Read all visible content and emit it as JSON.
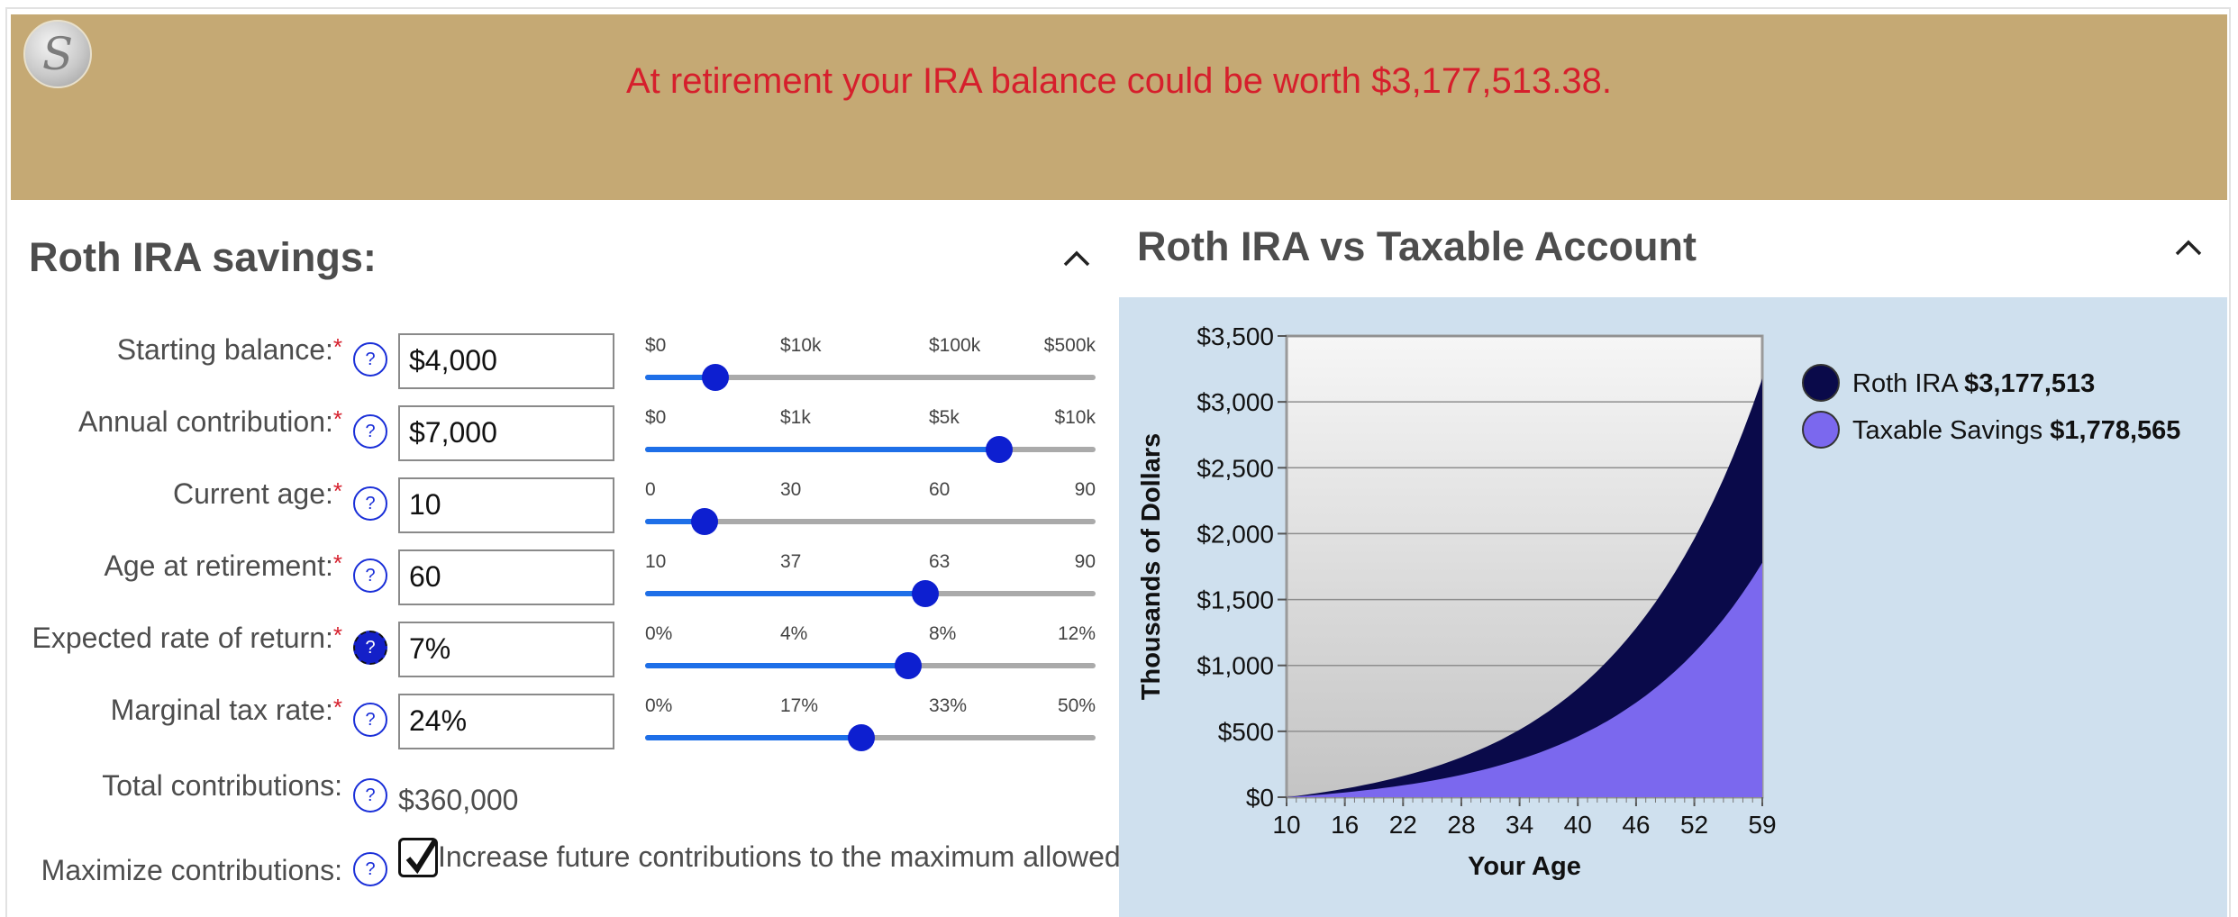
{
  "banner": {
    "message": "At retirement your IRA balance could be worth $3,177,513.38.",
    "logo_icon": "globe-logo-icon",
    "color_bg": "#c5a974",
    "color_text": "#d61f2c"
  },
  "left": {
    "title": "Roth IRA savings:",
    "rows": [
      {
        "label": "Starting balance:",
        "value": "$4,000",
        "ticks": [
          "$0",
          "$10k",
          "$100k",
          "$500k"
        ],
        "position": 0.155
      },
      {
        "label": "Annual contribution:",
        "value": "$7,000",
        "ticks": [
          "$0",
          "$1k",
          "$5k",
          "$10k"
        ],
        "position": 0.785
      },
      {
        "label": "Current age:",
        "value": "10",
        "ticks": [
          "0",
          "30",
          "60",
          "90"
        ],
        "position": 0.132
      },
      {
        "label": "Age at retirement:",
        "value": "60",
        "ticks": [
          "10",
          "37",
          "63",
          "90"
        ],
        "position": 0.622
      },
      {
        "label": "Expected rate of return:",
        "value": "7%",
        "ticks": [
          "0%",
          "4%",
          "8%",
          "12%"
        ],
        "position": 0.583
      },
      {
        "label": "Marginal tax rate:",
        "value": "24%",
        "ticks": [
          "0%",
          "17%",
          "33%",
          "50%"
        ],
        "position": 0.48
      }
    ],
    "total": {
      "label": "Total contributions:",
      "value": "$360,000"
    },
    "maximize": {
      "label": "Maximize contributions:",
      "text": "Increase future contributions to the maximum allowed",
      "checked": true
    },
    "required_mark": "*",
    "help_mark": "?"
  },
  "right": {
    "title": "Roth IRA vs Taxable Account"
  },
  "chart_data": {
    "type": "area",
    "title": "",
    "xlabel": "Your Age",
    "ylabel": "Thousands of Dollars",
    "x_ticks": [
      "10",
      "16",
      "22",
      "28",
      "34",
      "40",
      "46",
      "52",
      "59"
    ],
    "y_ticks": [
      "$0",
      "$500",
      "$1,000",
      "$1,500",
      "$2,000",
      "$2,500",
      "$3,000",
      "$3,500"
    ],
    "xlim": [
      10,
      59
    ],
    "ylim": [
      0,
      3500
    ],
    "grid": true,
    "legend_position": "right",
    "series": [
      {
        "name": "Roth IRA",
        "legend_value": "$3,177,513",
        "color": "#0a0a4a",
        "end_value": 3177.5
      },
      {
        "name": "Taxable Savings",
        "legend_value": "$1,778,565",
        "color": "#7b68ee",
        "end_value": 1778.6
      }
    ]
  }
}
